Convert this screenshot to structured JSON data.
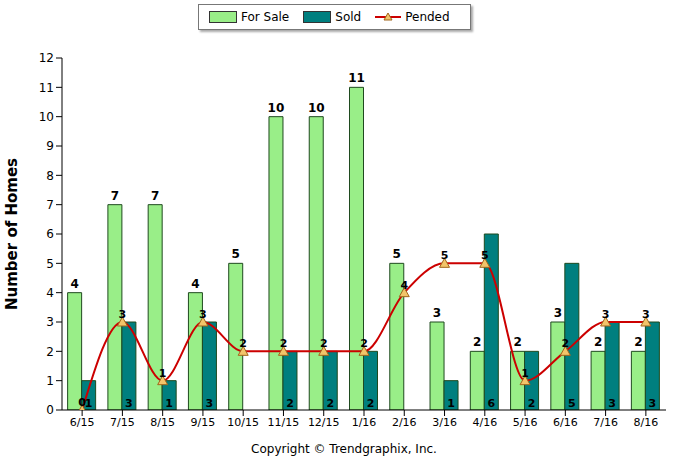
{
  "chart_data": {
    "type": "bar",
    "y_label": "Number of Homes",
    "annotations": [
      "Copyright © Trendgraphix, Inc."
    ],
    "categories": [
      "6/15",
      "7/15",
      "8/15",
      "9/15",
      "10/15",
      "11/15",
      "12/15",
      "1/16",
      "2/16",
      "3/16",
      "4/16",
      "5/16",
      "6/16",
      "7/16",
      "8/16"
    ],
    "series": [
      {
        "name": "For Sale",
        "type": "bar",
        "color": "#99ee88",
        "values": [
          4,
          7,
          7,
          4,
          5,
          10,
          10,
          11,
          5,
          3,
          2,
          2,
          3,
          2,
          2
        ]
      },
      {
        "name": "Sold",
        "type": "bar",
        "color": "#007f7f",
        "values": [
          1,
          3,
          1,
          3,
          0,
          2,
          2,
          2,
          0,
          1,
          6,
          2,
          5,
          3,
          3
        ]
      },
      {
        "name": "Pended",
        "type": "line",
        "color": "#cc0000",
        "marker": "triangle",
        "values": [
          0,
          3,
          1,
          3,
          2,
          2,
          2,
          2,
          4,
          5,
          5,
          1,
          2,
          3,
          3
        ]
      }
    ],
    "ylim": [
      0,
      12
    ],
    "yticks": [
      0,
      1,
      2,
      3,
      4,
      5,
      6,
      7,
      8,
      9,
      10,
      11,
      12
    ],
    "grid": false,
    "legend": "top",
    "data_labels": true
  }
}
